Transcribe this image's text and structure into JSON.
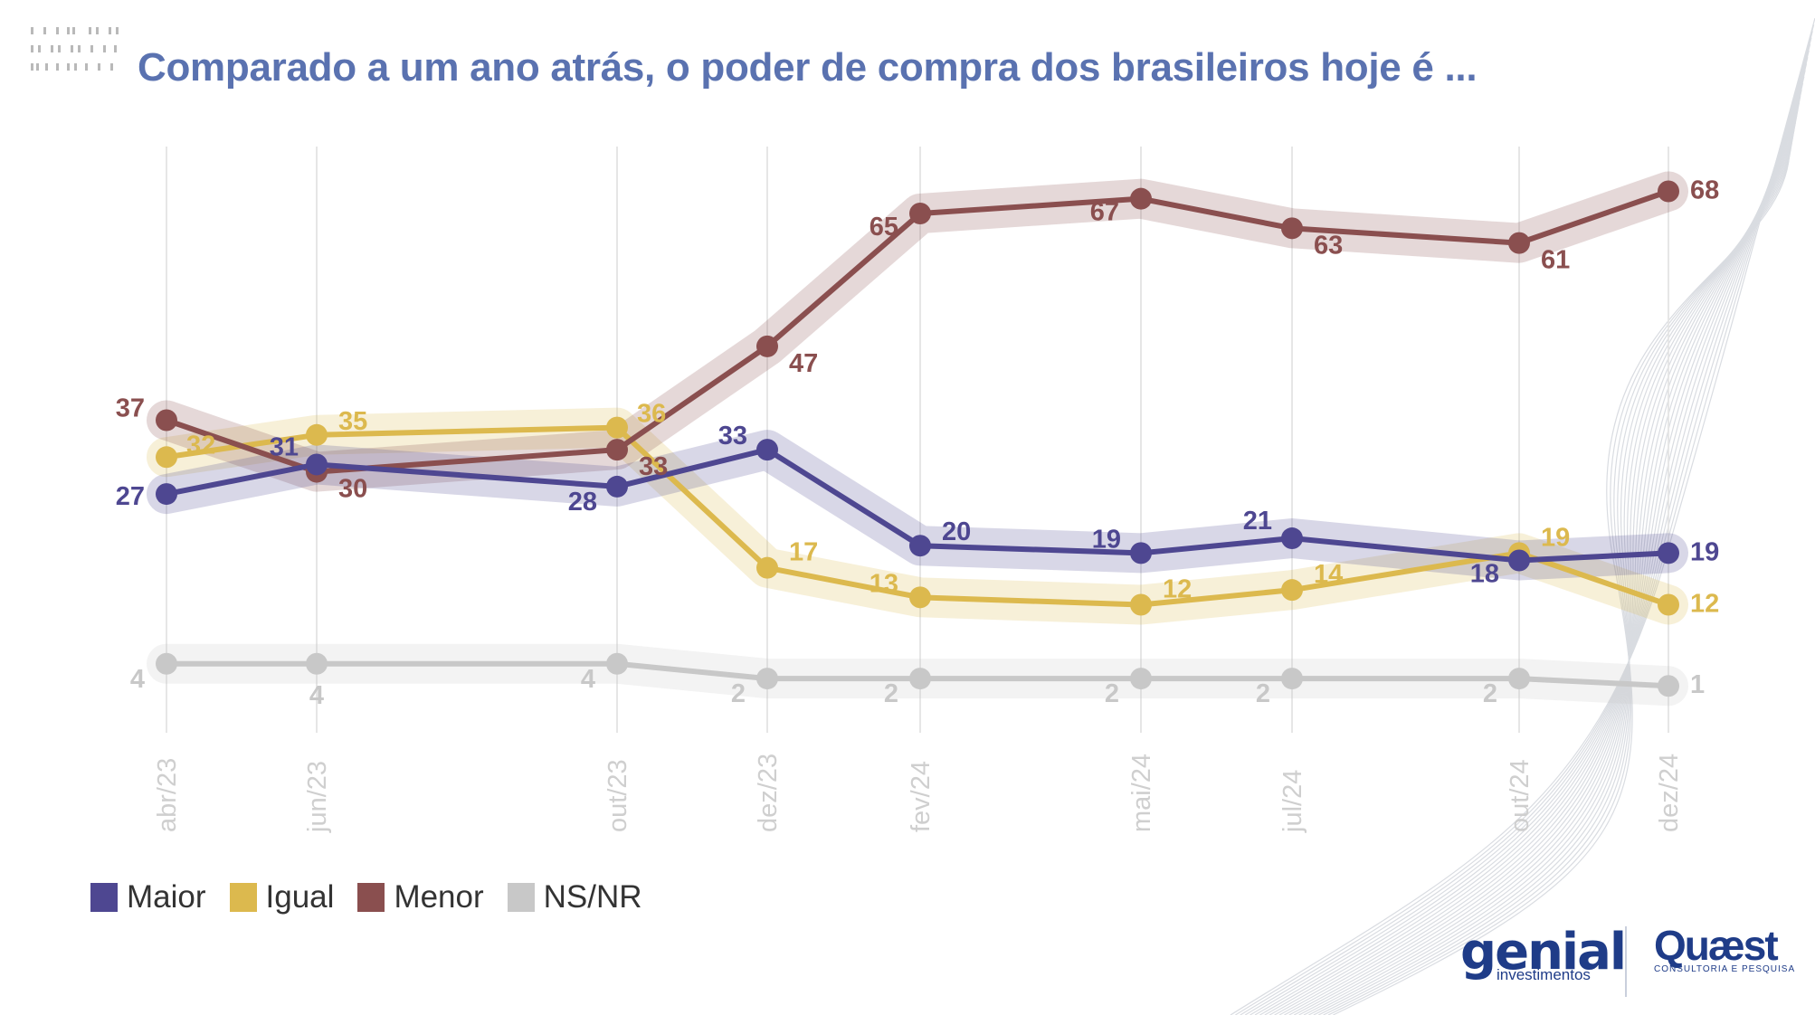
{
  "chart_data": {
    "type": "line",
    "title": "Comparado a um ano atrás, o poder de compra dos brasileiros hoje é ...",
    "categories": [
      "abr/23",
      "jun/23",
      "out/23",
      "dez/23",
      "fev/24",
      "mai/24",
      "jul/24",
      "out/24",
      "dez/24"
    ],
    "series": [
      {
        "name": "Maior",
        "color": "#4e4791",
        "values": [
          27,
          31,
          28,
          33,
          20,
          19,
          21,
          18,
          19
        ]
      },
      {
        "name": "Igual",
        "color": "#dcb94e",
        "values": [
          32,
          35,
          36,
          17,
          13,
          12,
          14,
          19,
          12
        ]
      },
      {
        "name": "Menor",
        "color": "#8a4f4f",
        "values": [
          37,
          30,
          33,
          47,
          65,
          67,
          63,
          61,
          68
        ]
      },
      {
        "name": "NS/NR",
        "color": "#c8c8c8",
        "values": [
          4,
          4,
          4,
          2,
          2,
          2,
          2,
          2,
          1
        ]
      }
    ],
    "xlabel": "",
    "ylabel": "",
    "ylim": [
      0,
      75
    ],
    "grid": "vertical",
    "legend_position": "bottom-left"
  },
  "brand": {
    "genial_name": "genial",
    "genial_sub": "investimentos",
    "quaest_name": "Quæst",
    "quaest_sub": "CONSULTORIA E PESQUISA"
  }
}
